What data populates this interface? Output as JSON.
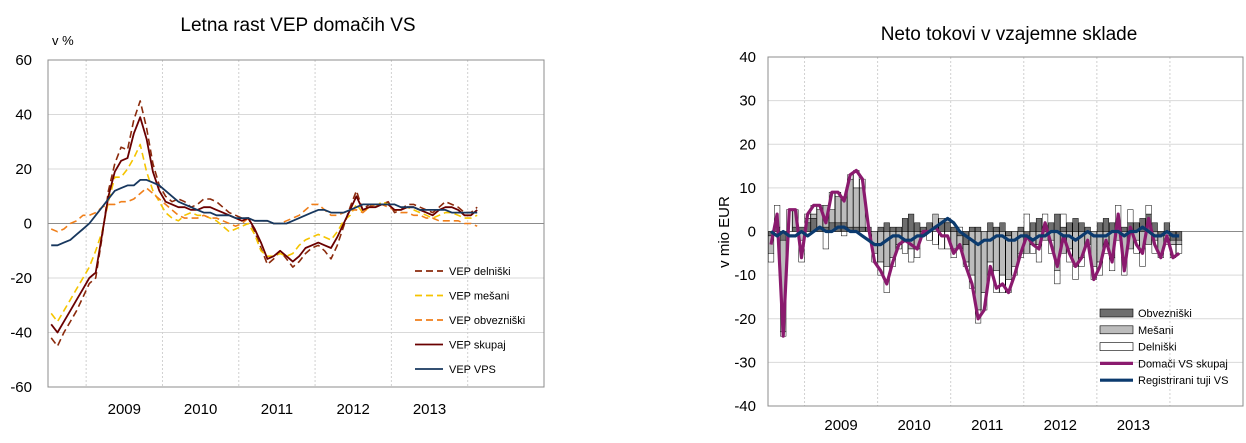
{
  "chart_data": [
    {
      "type": "line",
      "title": "Letna rast VEP domačih VS",
      "ylabel": "v %",
      "xlabel": "",
      "ylim": [
        -60,
        60
      ],
      "yticks": [
        60,
        40,
        20,
        0,
        -20,
        -40,
        -60
      ],
      "xticks": [
        "2009",
        "2010",
        "2011",
        "2012",
        "2013"
      ],
      "x_start": "2008-07",
      "x_end": "2014-12",
      "grid": true,
      "legend_position": "bottom-right",
      "series": [
        {
          "name": "VEP delniški",
          "color": "#8b2a0c",
          "dash": "dashed",
          "values": [
            -42,
            -45,
            -40,
            -36,
            -32,
            -27,
            -22,
            -20,
            -5,
            12,
            22,
            28,
            27,
            38,
            45,
            35,
            22,
            14,
            10,
            8,
            9,
            8,
            6,
            7,
            9,
            9,
            8,
            6,
            4,
            3,
            2,
            2,
            -3,
            -9,
            -15,
            -13,
            -10,
            -13,
            -16,
            -14,
            -11,
            -9,
            -8,
            -10,
            -13,
            -8,
            -1,
            6,
            12,
            5,
            7,
            6,
            7,
            8,
            4,
            5,
            7,
            7,
            6,
            5,
            4,
            6,
            8,
            7,
            6,
            4,
            4,
            6
          ]
        },
        {
          "name": "VEP mešani",
          "color": "#f5c400",
          "dash": "dashed",
          "values": [
            -33,
            -36,
            -32,
            -28,
            -24,
            -20,
            -16,
            -10,
            -3,
            8,
            17,
            17,
            20,
            24,
            29,
            19,
            12,
            8,
            4,
            2,
            1,
            3,
            4,
            3,
            3,
            2,
            1,
            -1,
            -3,
            -2,
            -1,
            0,
            -4,
            -10,
            -12,
            -12,
            -11,
            -12,
            -11,
            -8,
            -6,
            -5,
            -4,
            -5,
            -6,
            -3,
            1,
            3,
            7,
            4,
            6,
            6,
            8,
            7,
            5,
            5,
            6,
            5,
            4,
            3,
            2,
            3,
            4,
            4,
            3,
            2,
            2,
            3
          ]
        },
        {
          "name": "VEP obvezniški",
          "color": "#f07f1a",
          "dash": "dashed",
          "values": [
            -2,
            -3,
            -2,
            0,
            1,
            3,
            3,
            4,
            6,
            7,
            7,
            8,
            8,
            9,
            11,
            13,
            11,
            9,
            7,
            5,
            3,
            2,
            2,
            2,
            3,
            2,
            2,
            1,
            0,
            -1,
            0,
            2,
            1,
            1,
            1,
            0,
            0,
            1,
            2,
            3,
            5,
            7,
            7,
            5,
            3,
            3,
            4,
            5,
            5,
            4,
            6,
            7,
            7,
            6,
            5,
            4,
            4,
            3,
            3,
            2,
            2,
            1,
            1,
            1,
            1,
            0,
            0,
            -1
          ]
        },
        {
          "name": "VEP skupaj",
          "color": "#6a0000",
          "dash": "solid",
          "values": [
            -37,
            -40,
            -36,
            -32,
            -28,
            -24,
            -20,
            -18,
            -4,
            10,
            19,
            23,
            24,
            33,
            39,
            31,
            19,
            12,
            8,
            7,
            6,
            6,
            5,
            5,
            6,
            6,
            5,
            4,
            3,
            2,
            1,
            2,
            -2,
            -7,
            -13,
            -12,
            -10,
            -12,
            -14,
            -12,
            -9,
            -8,
            -7,
            -8,
            -9,
            -5,
            0,
            5,
            10,
            5,
            6,
            6,
            7,
            7,
            5,
            5,
            6,
            6,
            5,
            4,
            3,
            5,
            6,
            6,
            5,
            3,
            3,
            5
          ]
        },
        {
          "name": "VEP VPS",
          "color": "#17375e",
          "dash": "solid",
          "values": [
            -8,
            -8,
            -7,
            -6,
            -4,
            -2,
            0,
            3,
            6,
            9,
            12,
            13,
            14,
            14,
            16,
            16,
            15,
            14,
            12,
            10,
            8,
            7,
            6,
            5,
            4,
            4,
            3,
            3,
            3,
            2,
            2,
            2,
            1,
            1,
            1,
            0,
            0,
            0,
            1,
            2,
            3,
            4,
            5,
            5,
            4,
            4,
            4,
            5,
            6,
            7,
            7,
            7,
            7,
            7,
            7,
            6,
            6,
            6,
            5,
            5,
            5,
            5,
            5,
            4,
            4,
            4,
            4,
            4
          ]
        }
      ]
    },
    {
      "type": "bar",
      "title": "Neto tokovi v vzajemne sklade",
      "ylabel": "v mio EUR",
      "xlabel": "",
      "ylim": [
        -40,
        40
      ],
      "yticks": [
        40,
        30,
        20,
        10,
        0,
        -10,
        -20,
        -30,
        -40
      ],
      "xticks": [
        "2009",
        "2010",
        "2011",
        "2012",
        "2013"
      ],
      "x_start": "2008-07",
      "x_end": "2014-12",
      "grid": true,
      "legend_position": "bottom-right",
      "stacked": true,
      "series": [
        {
          "name": "Obvezniški",
          "kind": "bar",
          "color": "#6e6e6e",
          "values": [
            -1,
            1,
            -2,
            0,
            1,
            1,
            2,
            3,
            1,
            1,
            2,
            2,
            2,
            1,
            1,
            1,
            1,
            0,
            1,
            2,
            1,
            1,
            3,
            4,
            2,
            1,
            2,
            0,
            2,
            2,
            1,
            -1,
            -3,
            1,
            1,
            0,
            2,
            1,
            2,
            -1,
            0,
            1,
            -1,
            2,
            3,
            1,
            2,
            4,
            1,
            2,
            3,
            2,
            1,
            0,
            2,
            3,
            2,
            1,
            1,
            2,
            2,
            3,
            4,
            2,
            -1,
            2,
            -2,
            -2
          ]
        },
        {
          "name": "Mešani",
          "kind": "bar",
          "color": "#bcbcbc",
          "values": [
            -4,
            0,
            -21,
            0,
            4,
            -2,
            1,
            1,
            4,
            5,
            3,
            6,
            6,
            11,
            9,
            9,
            0,
            -5,
            -7,
            -8,
            -6,
            -3,
            -2,
            -4,
            -4,
            -1,
            0,
            4,
            1,
            1,
            -4,
            -3,
            -4,
            -10,
            -18,
            -14,
            -7,
            -9,
            -10,
            -10,
            -8,
            -5,
            -4,
            -3,
            -3,
            -2,
            -2,
            -9,
            -5,
            -4,
            -8,
            -6,
            -3,
            -8,
            -7,
            -3,
            -6,
            -2,
            -6,
            -4,
            -2,
            -4,
            -3,
            -2,
            -4,
            -1,
            -1,
            -1
          ]
        },
        {
          "name": "Delniški",
          "kind": "bar",
          "color": "#ffffff",
          "values": [
            -2,
            5,
            -1,
            5,
            0,
            -5,
            1,
            2,
            1,
            -4,
            4,
            1,
            -1,
            1,
            4,
            2,
            0,
            -2,
            -3,
            -6,
            -2,
            -1,
            -3,
            -3,
            -2,
            0,
            -2,
            -3,
            -4,
            -4,
            -2,
            1,
            -1,
            -3,
            -3,
            -4,
            -3,
            -5,
            -4,
            -3,
            -2,
            -1,
            4,
            -2,
            -4,
            3,
            -3,
            -3,
            3,
            -3,
            -3,
            -2,
            0,
            -3,
            -3,
            -2,
            -3,
            5,
            -4,
            3,
            -3,
            -4,
            2,
            -3,
            -1,
            -2,
            -3,
            -2
          ]
        },
        {
          "name": "Domači VS skupaj",
          "kind": "line",
          "color": "#8a1a6e",
          "values": [
            -3,
            4,
            -24,
            5,
            5,
            -6,
            4,
            6,
            6,
            2,
            9,
            9,
            7,
            13,
            14,
            12,
            1,
            -7,
            -9,
            -12,
            -7,
            -3,
            -2,
            -3,
            -4,
            0,
            0,
            1,
            -1,
            -1,
            -5,
            -3,
            -8,
            -12,
            -20,
            -18,
            -8,
            -13,
            -12,
            -14,
            -10,
            -5,
            -1,
            -3,
            -4,
            2,
            -3,
            -8,
            -1,
            -5,
            -8,
            -6,
            -2,
            -11,
            -8,
            -2,
            -7,
            4,
            -9,
            1,
            -3,
            -5,
            3,
            -3,
            -6,
            -1,
            -6,
            -5
          ]
        },
        {
          "name": "Registrirani tuji VS",
          "kind": "line",
          "color": "#0b3a6e",
          "values": [
            0,
            -1,
            0,
            -1,
            -1,
            0,
            -1,
            0,
            1,
            0,
            0,
            1,
            1,
            0,
            0,
            -1,
            -2,
            -3,
            -3,
            -2,
            -1,
            -1,
            -2,
            -2,
            -1,
            -1,
            0,
            1,
            2,
            3,
            2,
            0,
            -1,
            -2,
            -3,
            -2,
            -2,
            -1,
            -1,
            -2,
            -2,
            -1,
            -1,
            -2,
            -1,
            -1,
            0,
            0,
            -1,
            -1,
            -2,
            -1,
            0,
            -1,
            -1,
            -1,
            0,
            0,
            -1,
            0,
            0,
            1,
            0,
            -1,
            -1,
            0,
            -1,
            -1
          ]
        }
      ]
    }
  ]
}
